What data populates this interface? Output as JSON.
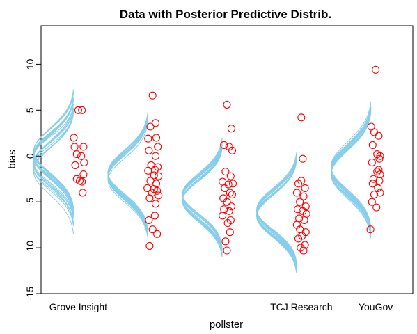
{
  "chart_data": {
    "type": "scatter",
    "title": "Data with Posterior Predictive Distrib.",
    "xlabel": "pollster",
    "ylabel": "bias",
    "ylim": [
      -15,
      14.2
    ],
    "yticks": [
      -15,
      -10,
      -5,
      0,
      5,
      10
    ],
    "ytick_labels": [
      "-15",
      "-10",
      "-5",
      "0",
      "5",
      "10"
    ],
    "xlim": [
      0.5,
      5.5
    ],
    "categories": [
      "Grove Insight",
      "",
      "",
      "TCJ Research",
      "YouGov"
    ],
    "curve_color": "#87ceeb",
    "point_color": "#ff0000",
    "grid": false,
    "posterior_curves": {
      "n_draws": 20,
      "curve_height": 0.55,
      "groups": [
        {
          "mean": -0.5,
          "sd": 2.3,
          "mean_spread": 1.2,
          "sd_spread": 0.25
        },
        {
          "mean": -2.2,
          "sd": 2.4,
          "mean_spread": 0.5,
          "sd_spread": 0.12
        },
        {
          "mean": -4.5,
          "sd": 2.2,
          "mean_spread": 0.4,
          "sd_spread": 0.1
        },
        {
          "mean": -6.2,
          "sd": 2.2,
          "mean_spread": 0.4,
          "sd_spread": 0.1
        },
        {
          "mean": -1.6,
          "sd": 2.5,
          "mean_spread": 0.5,
          "sd_spread": 0.12
        }
      ]
    },
    "series": [
      {
        "values": [
          5.0,
          5.0,
          2.0,
          1.0,
          1.0,
          0.2,
          0.0,
          -0.7,
          -1.0,
          -2.0,
          -2.5,
          -2.7,
          -2.8,
          -4.0
        ],
        "jitter": [
          0.0,
          0.05,
          -0.06,
          -0.05,
          0.07,
          -0.02,
          0.04,
          0.08,
          -0.04,
          0.07,
          -0.02,
          0.02,
          0.05,
          0.06
        ]
      },
      {
        "values": [
          6.6,
          3.6,
          3.2,
          2.0,
          1.9,
          1.0,
          0.6,
          0.0,
          -1.0,
          -1.2,
          -1.5,
          -1.6,
          -2.1,
          -2.2,
          -2.7,
          -3.0,
          -3.5,
          -3.6,
          -3.8,
          -4.0,
          -4.3,
          -4.6,
          -5.2,
          -6.5,
          -7.0,
          -8.0,
          -8.5,
          -9.8
        ],
        "jitter": [
          0.0,
          0.04,
          -0.03,
          0.05,
          -0.06,
          0.07,
          -0.05,
          0.04,
          -0.02,
          0.07,
          0.03,
          -0.06,
          0.02,
          0.08,
          -0.03,
          0.05,
          -0.07,
          0.02,
          0.06,
          -0.01,
          0.08,
          -0.04,
          0.04,
          0.03,
          -0.05,
          0.0,
          0.06,
          -0.04
        ]
      },
      {
        "values": [
          5.6,
          3.0,
          1.2,
          1.0,
          0.6,
          -1.7,
          -2.2,
          -2.8,
          -3.0,
          -3.1,
          -3.5,
          -4.0,
          -4.2,
          -4.6,
          -5.0,
          -5.5,
          -5.8,
          -6.0,
          -6.5,
          -7.0,
          -7.3,
          -8.3,
          -9.3,
          -10.3
        ],
        "jitter": [
          0.0,
          0.06,
          -0.04,
          0.03,
          0.07,
          -0.02,
          0.05,
          -0.06,
          0.08,
          0.02,
          -0.03,
          0.04,
          0.07,
          -0.05,
          0.0,
          0.06,
          -0.04,
          0.03,
          -0.06,
          0.05,
          0.01,
          0.04,
          -0.02,
          0.0
        ]
      },
      {
        "values": [
          4.2,
          -0.3,
          -2.7,
          -3.0,
          -3.5,
          -4.0,
          -4.4,
          -5.0,
          -5.5,
          -5.8,
          -6.0,
          -6.3,
          -6.8,
          -7.0,
          -7.5,
          -8.0,
          -8.3,
          -8.7,
          -9.0,
          -9.7,
          -10.0,
          -10.3
        ],
        "jitter": [
          0.0,
          0.02,
          0.0,
          -0.04,
          0.05,
          -0.06,
          0.03,
          -0.02,
          0.06,
          -0.05,
          0.02,
          0.07,
          -0.03,
          0.04,
          -0.06,
          -0.02,
          0.06,
          0.01,
          -0.04,
          0.05,
          -0.01,
          0.03
        ]
      },
      {
        "values": [
          9.4,
          3.2,
          2.6,
          2.2,
          1.2,
          0.2,
          0.0,
          -0.3,
          -0.7,
          -1.5,
          -1.7,
          -2.0,
          -2.5,
          -2.7,
          -3.0,
          -3.5,
          -4.0,
          -4.2,
          -5.0,
          -5.6,
          -8.0
        ],
        "jitter": [
          0.0,
          -0.06,
          -0.02,
          0.04,
          -0.04,
          0.02,
          0.06,
          0.05,
          -0.05,
          0.04,
          0.02,
          0.06,
          -0.03,
          0.05,
          -0.04,
          0.03,
          0.06,
          -0.02,
          -0.05,
          0.01,
          -0.07
        ]
      }
    ]
  }
}
